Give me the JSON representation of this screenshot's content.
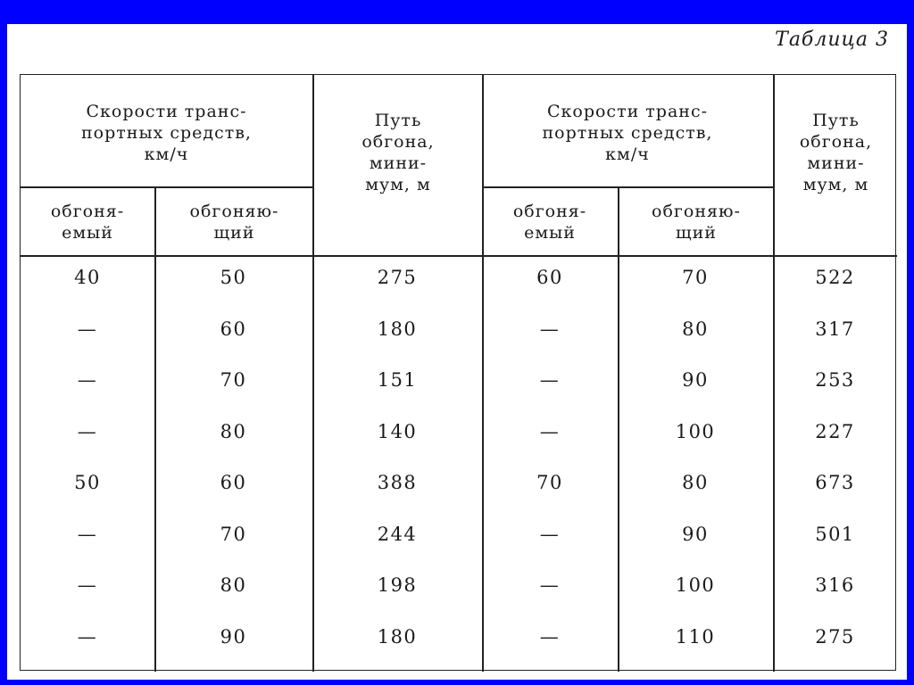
{
  "title": "Таблица 3",
  "header": {
    "group_left": "Скорости транс-\nпортных средств,\nкм/ч",
    "overtaken_left": "обгоня-\nемый",
    "overtaking_left": "обгоняю-\nщий",
    "distance_left": "Путь\nобгона,\nмини-\nмум, м",
    "group_right": "Скорости транс-\nпортных средств,\nкм/ч",
    "overtaken_right": "обгоня-\nемый",
    "overtaking_right": "обгоняю-\nщий",
    "distance_right": "Путь\nобгона,\nмини-\nмум, м"
  },
  "rows": [
    [
      "40",
      "50",
      "275",
      "60",
      "70",
      "522"
    ],
    [
      "—",
      "60",
      "180",
      "—",
      "80",
      "317"
    ],
    [
      "—",
      "70",
      "151",
      "—",
      "90",
      "253"
    ],
    [
      "—",
      "80",
      "140",
      "—",
      "100",
      "227"
    ],
    [
      "50",
      "60",
      "388",
      "70",
      "80",
      "673"
    ],
    [
      "—",
      "70",
      "244",
      "—",
      "90",
      "501"
    ],
    [
      "—",
      "80",
      "198",
      "—",
      "100",
      "316"
    ],
    [
      "—",
      "90",
      "180",
      "—",
      "110",
      "275"
    ]
  ]
}
